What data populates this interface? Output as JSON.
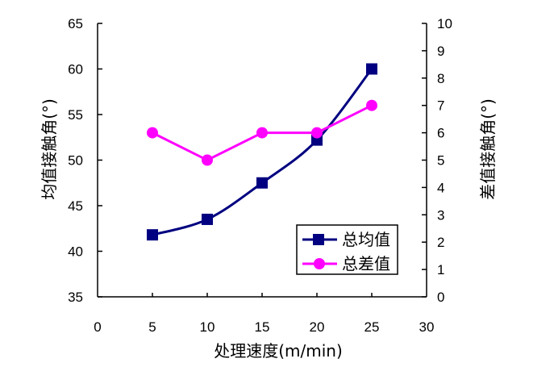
{
  "chart_data": {
    "type": "line",
    "xlabel": "处理速度(m/min)",
    "ylabel": "均值接触角(°)",
    "y2label": "差值接触角(°)",
    "xlim": [
      0,
      30
    ],
    "ylim": [
      35,
      65
    ],
    "y2lim": [
      0,
      10
    ],
    "xticks": [
      "0",
      "5",
      "10",
      "15",
      "20",
      "25",
      "30"
    ],
    "yticks": [
      "35",
      "40",
      "45",
      "50",
      "55",
      "60",
      "65"
    ],
    "y2ticks": [
      "0",
      "1",
      "2",
      "3",
      "4",
      "5",
      "6",
      "7",
      "8",
      "9",
      "10"
    ],
    "grid": false,
    "legend_position": "bottom-right",
    "series": [
      {
        "name": "总均值",
        "axis": "left",
        "marker": "square",
        "color": "#000080",
        "smooth": true,
        "x": [
          5,
          10,
          15,
          20,
          25
        ],
        "y": [
          41.8,
          43.5,
          47.5,
          52.2,
          60.0
        ]
      },
      {
        "name": "总差值",
        "axis": "right",
        "marker": "circle",
        "color": "#ff00ff",
        "smooth": false,
        "x": [
          5,
          10,
          15,
          20,
          25
        ],
        "y": [
          6,
          5,
          6,
          6,
          7
        ]
      }
    ]
  }
}
